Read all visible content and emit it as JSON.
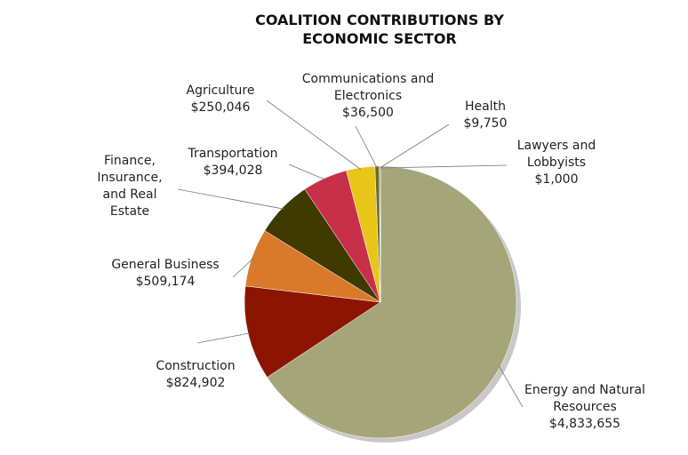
{
  "chart_data": {
    "type": "pie",
    "title": "COALITION CONTRIBUTIONS BY ECONOMIC SECTOR",
    "categories": [
      "Energy and Natural Resources",
      "Construction",
      "General Business",
      "Finance, Insurance, and Real Estate",
      "Transportation",
      "Agriculture",
      "Communications and Electronics",
      "Health",
      "Lawyers and Lobbyists"
    ],
    "values": [
      4833655,
      824902,
      509174,
      500000,
      394028,
      250046,
      36500,
      9750,
      1000
    ],
    "value_labels": [
      "$4,833,655",
      "$824,902",
      "$509,174",
      null,
      "$394,028",
      "$250,046",
      "$36,500",
      "$9,750",
      "$1,000"
    ],
    "colors": [
      "#a5a57a",
      "#8b1500",
      "#d97a2a",
      "#3f3a00",
      "#c8304a",
      "#e8c619",
      "#6b6b2a",
      "#7d7d4a",
      "#999999"
    ]
  }
}
